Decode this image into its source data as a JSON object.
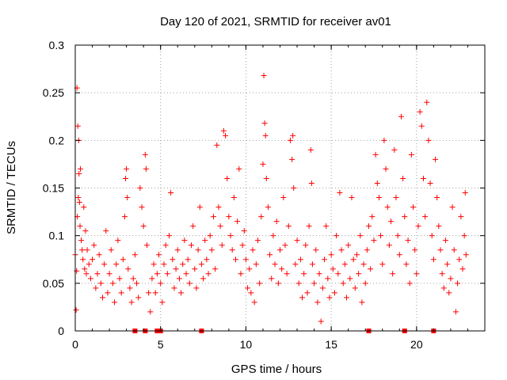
{
  "chart_data": {
    "type": "scatter",
    "title": "Day 120 of 2021, SRMTID for receiver av01",
    "xlabel": "GPS time / hours",
    "ylabel": "SRMTID / TECUs",
    "xlim": [
      0,
      24
    ],
    "ylim": [
      0,
      0.3
    ],
    "xticks": [
      0,
      5,
      10,
      15,
      20
    ],
    "yticks": [
      0,
      0.05,
      0.1,
      0.15,
      0.2,
      0.25,
      0.3
    ],
    "xtick_labels": [
      "0",
      "5",
      "10",
      "15",
      "20"
    ],
    "ytick_labels": [
      "0",
      "0.05",
      "0.1",
      "0.15",
      "0.2",
      "0.25",
      "0.3"
    ],
    "grid": true,
    "marker": "plus",
    "color": "#ff0000",
    "series": [
      {
        "name": "SRMTID",
        "points": [
          [
            0.0,
            0.08
          ],
          [
            0.05,
            0.022
          ],
          [
            0.08,
            0.063
          ],
          [
            0.1,
            0.255
          ],
          [
            0.12,
            0.12
          ],
          [
            0.15,
            0.215
          ],
          [
            0.18,
            0.14
          ],
          [
            0.2,
            0.2
          ],
          [
            0.22,
            0.165
          ],
          [
            0.25,
            0.135
          ],
          [
            0.28,
            0.11
          ],
          [
            0.3,
            0.17
          ],
          [
            0.35,
            0.095
          ],
          [
            0.4,
            0.085
          ],
          [
            0.45,
            0.075
          ],
          [
            0.5,
            0.13
          ],
          [
            0.55,
            0.065
          ],
          [
            0.6,
            0.105
          ],
          [
            0.65,
            0.06
          ],
          [
            0.7,
            0.085
          ],
          [
            0.8,
            0.07
          ],
          [
            0.9,
            0.055
          ],
          [
            1.0,
            0.075
          ],
          [
            1.1,
            0.09
          ],
          [
            1.2,
            0.045
          ],
          [
            1.3,
            0.06
          ],
          [
            1.4,
            0.08
          ],
          [
            1.5,
            0.05
          ],
          [
            1.6,
            0.035
          ],
          [
            1.7,
            0.07
          ],
          [
            1.8,
            0.105
          ],
          [
            1.9,
            0.04
          ],
          [
            2.0,
            0.06
          ],
          [
            2.1,
            0.085
          ],
          [
            2.2,
            0.05
          ],
          [
            2.3,
            0.03
          ],
          [
            2.4,
            0.07
          ],
          [
            2.5,
            0.095
          ],
          [
            2.6,
            0.055
          ],
          [
            2.7,
            0.04
          ],
          [
            2.8,
            0.075
          ],
          [
            2.9,
            0.12
          ],
          [
            2.95,
            0.16
          ],
          [
            3.0,
            0.17
          ],
          [
            3.05,
            0.14
          ],
          [
            3.1,
            0.065
          ],
          [
            3.2,
            0.045
          ],
          [
            3.3,
            0.03
          ],
          [
            3.4,
            0.055
          ],
          [
            3.5,
            0.08
          ],
          [
            3.6,
            0.05
          ],
          [
            3.7,
            0.035
          ],
          [
            3.8,
            0.15
          ],
          [
            3.9,
            0.13
          ],
          [
            4.0,
            0.11
          ],
          [
            4.1,
            0.185
          ],
          [
            4.15,
            0.17
          ],
          [
            4.2,
            0.09
          ],
          [
            4.3,
            0.04
          ],
          [
            4.4,
            0.02
          ],
          [
            4.5,
            0.055
          ],
          [
            4.6,
            0.07
          ],
          [
            4.7,
            0.04
          ],
          [
            4.8,
            0.06
          ],
          [
            4.9,
            0.08
          ],
          [
            5.0,
            0.05
          ],
          [
            5.1,
            0.03
          ],
          [
            5.2,
            0.07
          ],
          [
            5.3,
            0.09
          ],
          [
            5.4,
            0.06
          ],
          [
            5.5,
            0.1
          ],
          [
            5.6,
            0.145
          ],
          [
            5.7,
            0.075
          ],
          [
            5.8,
            0.045
          ],
          [
            5.9,
            0.065
          ],
          [
            6.0,
            0.085
          ],
          [
            6.1,
            0.055
          ],
          [
            6.2,
            0.04
          ],
          [
            6.3,
            0.07
          ],
          [
            6.4,
            0.095
          ],
          [
            6.5,
            0.06
          ],
          [
            6.6,
            0.075
          ],
          [
            6.7,
            0.05
          ],
          [
            6.8,
            0.09
          ],
          [
            6.9,
            0.11
          ],
          [
            7.0,
            0.065
          ],
          [
            7.1,
            0.045
          ],
          [
            7.2,
            0.085
          ],
          [
            7.3,
            0.13
          ],
          [
            7.4,
            0.07
          ],
          [
            7.5,
            0.055
          ],
          [
            7.6,
            0.095
          ],
          [
            7.7,
            0.075
          ],
          [
            7.8,
            0.06
          ],
          [
            7.9,
            0.1
          ],
          [
            8.0,
            0.085
          ],
          [
            8.1,
            0.12
          ],
          [
            8.2,
            0.065
          ],
          [
            8.3,
            0.195
          ],
          [
            8.4,
            0.13
          ],
          [
            8.5,
            0.11
          ],
          [
            8.6,
            0.09
          ],
          [
            8.7,
            0.21
          ],
          [
            8.8,
            0.205
          ],
          [
            8.9,
            0.16
          ],
          [
            9.0,
            0.12
          ],
          [
            9.1,
            0.1
          ],
          [
            9.2,
            0.085
          ],
          [
            9.3,
            0.14
          ],
          [
            9.4,
            0.075
          ],
          [
            9.5,
            0.115
          ],
          [
            9.6,
            0.17
          ],
          [
            9.7,
            0.06
          ],
          [
            9.8,
            0.09
          ],
          [
            9.9,
            0.105
          ],
          [
            10.0,
            0.075
          ],
          [
            10.1,
            0.045
          ],
          [
            10.2,
            0.065
          ],
          [
            10.3,
            0.04
          ],
          [
            10.4,
            0.085
          ],
          [
            10.5,
            0.03
          ],
          [
            10.6,
            0.07
          ],
          [
            10.7,
            0.095
          ],
          [
            10.8,
            0.05
          ],
          [
            10.9,
            0.12
          ],
          [
            11.0,
            0.175
          ],
          [
            11.05,
            0.268
          ],
          [
            11.1,
            0.218
          ],
          [
            11.15,
            0.205
          ],
          [
            11.2,
            0.16
          ],
          [
            11.3,
            0.13
          ],
          [
            11.4,
            0.08
          ],
          [
            11.5,
            0.055
          ],
          [
            11.6,
            0.1
          ],
          [
            11.7,
            0.07
          ],
          [
            11.8,
            0.115
          ],
          [
            11.9,
            0.05
          ],
          [
            12.0,
            0.085
          ],
          [
            12.1,
            0.065
          ],
          [
            12.2,
            0.14
          ],
          [
            12.3,
            0.09
          ],
          [
            12.4,
            0.06
          ],
          [
            12.5,
            0.11
          ],
          [
            12.6,
            0.2
          ],
          [
            12.7,
            0.18
          ],
          [
            12.75,
            0.205
          ],
          [
            12.8,
            0.15
          ],
          [
            12.9,
            0.07
          ],
          [
            13.0,
            0.095
          ],
          [
            13.1,
            0.05
          ],
          [
            13.2,
            0.075
          ],
          [
            13.3,
            0.035
          ],
          [
            13.4,
            0.06
          ],
          [
            13.5,
            0.09
          ],
          [
            13.6,
            0.04
          ],
          [
            13.7,
            0.11
          ],
          [
            13.8,
            0.19
          ],
          [
            13.85,
            0.155
          ],
          [
            13.9,
            0.07
          ],
          [
            14.0,
            0.05
          ],
          [
            14.1,
            0.085
          ],
          [
            14.2,
            0.03
          ],
          [
            14.3,
            0.06
          ],
          [
            14.4,
            0.01
          ],
          [
            14.5,
            0.045
          ],
          [
            14.6,
            0.075
          ],
          [
            14.7,
            0.11
          ],
          [
            14.8,
            0.055
          ],
          [
            14.9,
            0.035
          ],
          [
            15.0,
            0.08
          ],
          [
            15.1,
            0.065
          ],
          [
            15.2,
            0.04
          ],
          [
            15.3,
            0.1
          ],
          [
            15.4,
            0.06
          ],
          [
            15.5,
            0.145
          ],
          [
            15.6,
            0.085
          ],
          [
            15.7,
            0.05
          ],
          [
            15.8,
            0.07
          ],
          [
            15.9,
            0.035
          ],
          [
            16.0,
            0.09
          ],
          [
            16.1,
            0.055
          ],
          [
            16.2,
            0.14
          ],
          [
            16.3,
            0.075
          ],
          [
            16.4,
            0.045
          ],
          [
            16.5,
            0.08
          ],
          [
            16.6,
            0.06
          ],
          [
            16.7,
            0.1
          ],
          [
            16.8,
            0.03
          ],
          [
            16.9,
            0.07
          ],
          [
            17.0,
            0.05
          ],
          [
            17.1,
            0.085
          ],
          [
            17.2,
            0.11
          ],
          [
            17.3,
            0.065
          ],
          [
            17.4,
            0.12
          ],
          [
            17.5,
            0.095
          ],
          [
            17.6,
            0.185
          ],
          [
            17.7,
            0.155
          ],
          [
            17.8,
            0.14
          ],
          [
            17.9,
            0.1
          ],
          [
            18.0,
            0.07
          ],
          [
            18.1,
            0.2
          ],
          [
            18.2,
            0.17
          ],
          [
            18.3,
            0.13
          ],
          [
            18.4,
            0.09
          ],
          [
            18.5,
            0.115
          ],
          [
            18.6,
            0.06
          ],
          [
            18.7,
            0.19
          ],
          [
            18.8,
            0.14
          ],
          [
            18.9,
            0.1
          ],
          [
            19.0,
            0.08
          ],
          [
            19.1,
            0.225
          ],
          [
            19.2,
            0.16
          ],
          [
            19.3,
            0.12
          ],
          [
            19.4,
            0.07
          ],
          [
            19.5,
            0.095
          ],
          [
            19.6,
            0.05
          ],
          [
            19.7,
            0.185
          ],
          [
            19.8,
            0.13
          ],
          [
            19.9,
            0.085
          ],
          [
            20.0,
            0.06
          ],
          [
            20.1,
            0.11
          ],
          [
            20.2,
            0.23
          ],
          [
            20.3,
            0.215
          ],
          [
            20.4,
            0.16
          ],
          [
            20.5,
            0.12
          ],
          [
            20.6,
            0.24
          ],
          [
            20.7,
            0.2
          ],
          [
            20.8,
            0.155
          ],
          [
            20.9,
            0.1
          ],
          [
            21.0,
            0.075
          ],
          [
            21.1,
            0.18
          ],
          [
            21.2,
            0.14
          ],
          [
            21.3,
            0.11
          ],
          [
            21.4,
            0.085
          ],
          [
            21.5,
            0.06
          ],
          [
            21.6,
            0.045
          ],
          [
            21.7,
            0.095
          ],
          [
            21.8,
            0.07
          ],
          [
            21.9,
            0.04
          ],
          [
            22.0,
            0.055
          ],
          [
            22.1,
            0.13
          ],
          [
            22.2,
            0.085
          ],
          [
            22.3,
            0.02
          ],
          [
            22.4,
            0.05
          ],
          [
            22.5,
            0.075
          ],
          [
            22.6,
            0.12
          ],
          [
            22.7,
            0.065
          ],
          [
            22.8,
            0.1
          ],
          [
            22.85,
            0.145
          ],
          [
            22.9,
            0.08
          ]
        ]
      }
    ],
    "gap_markers_x": [
      3.5,
      4.1,
      4.8,
      5.0,
      7.4,
      17.2,
      19.3,
      21.0
    ],
    "gap_markers_y": 0
  }
}
